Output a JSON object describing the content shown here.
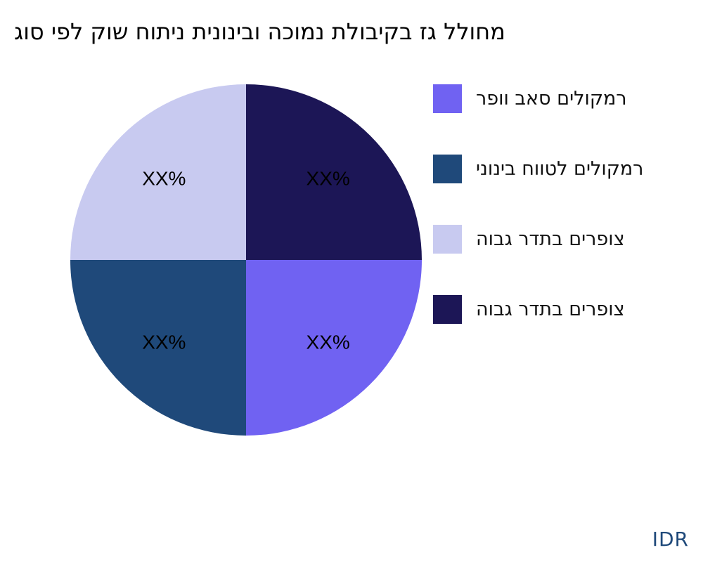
{
  "chart_data": {
    "type": "pie",
    "title": "גוס יפל קוש חותינ תינוניבו הכומנ תלוביקב זג ללוחמ",
    "slices": [
      {
        "name": "הובג רדתב םירפוצ",
        "value": 25,
        "label": "XX%",
        "color": "#1C1656"
      },
      {
        "name": "רפוו באס םילוקמר",
        "value": 25,
        "label": "XX%",
        "color": "#7062F2"
      },
      {
        "name": "ינוניב חווטל םילוקמר",
        "value": 25,
        "label": "XX%",
        "color": "#1F497A"
      },
      {
        "name": "הובג רדתב םירפוצ",
        "value": 25,
        "label": "XX%",
        "color": "#C8CAF0"
      }
    ],
    "legend": [
      {
        "label": "רפוו באס םילוקמר",
        "color": "#7062F2"
      },
      {
        "label": "ינוניב חווטל םילוקמר",
        "color": "#1F497A"
      },
      {
        "label": "הובג רדתב םירפוצ",
        "color": "#C8CAF0"
      },
      {
        "label": "הובג רדתב םירפוצ",
        "color": "#1C1656"
      }
    ],
    "legend_position": "right"
  },
  "brand": "IDR"
}
